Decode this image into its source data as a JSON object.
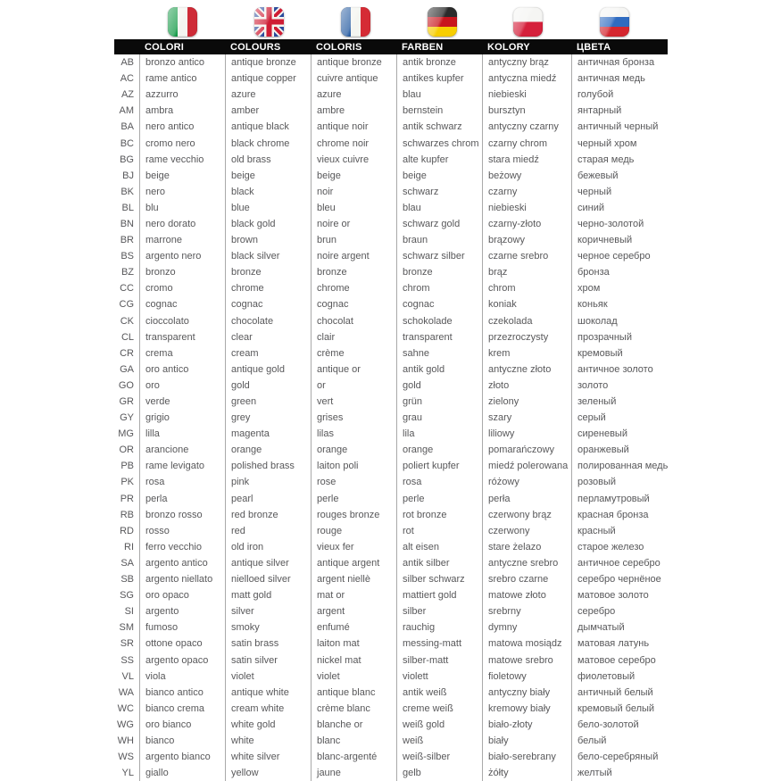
{
  "table": {
    "columns": [
      "COLORI",
      "COLOURS",
      "COLORIS",
      "FARBEN",
      "KOLORY",
      "ЦВЕТА"
    ],
    "flags": [
      {
        "name": "italy-flag",
        "colors": [
          "#169b48",
          "#f4f5f0",
          "#ce2b37"
        ]
      },
      {
        "name": "uk-flag",
        "colors": [
          "#012169",
          "#ffffff",
          "#c8102e"
        ]
      },
      {
        "name": "france-flag",
        "colors": [
          "#2b5fa3",
          "#f4f5f0",
          "#d52b35"
        ]
      },
      {
        "name": "germany-flag",
        "colors": [
          "#2b2b2b",
          "#c8151d",
          "#f7ce00"
        ]
      },
      {
        "name": "poland-flag",
        "colors": [
          "#f5f5f3",
          "#d5203b"
        ]
      },
      {
        "name": "russia-flag",
        "colors": [
          "#f5f5f3",
          "#2f6bc0",
          "#d5272f"
        ]
      }
    ],
    "rows": [
      {
        "code": "AB",
        "it": "bronzo antico",
        "en": "antique bronze",
        "fr": "antique bronze",
        "de": "antik bronze",
        "pl": "antyczny brąz",
        "ru": "античная бронза"
      },
      {
        "code": "AC",
        "it": "rame antico",
        "en": "antique copper",
        "fr": "cuivre antique",
        "de": "antikes kupfer",
        "pl": "antyczna miedź",
        "ru": "античная медь"
      },
      {
        "code": "AZ",
        "it": "azzurro",
        "en": "azure",
        "fr": "azure",
        "de": "blau",
        "pl": "niebieski",
        "ru": "голубой"
      },
      {
        "code": "AM",
        "it": "ambra",
        "en": "amber",
        "fr": "ambre",
        "de": "bernstein",
        "pl": "bursztyn",
        "ru": "янтарный"
      },
      {
        "code": "BA",
        "it": "nero antico",
        "en": "antique black",
        "fr": "antique noir",
        "de": "antik schwarz",
        "pl": "antyczny czarny",
        "ru": "античный черный"
      },
      {
        "code": "BC",
        "it": "cromo nero",
        "en": "black chrome",
        "fr": "chrome noir",
        "de": "schwarzes chrom",
        "pl": "czarny chrom",
        "ru": "черный хром"
      },
      {
        "code": "BG",
        "it": "rame vecchio",
        "en": "old brass",
        "fr": "vieux cuivre",
        "de": "alte kupfer",
        "pl": "stara miedź",
        "ru": "старая медь"
      },
      {
        "code": "BJ",
        "it": "beige",
        "en": "beige",
        "fr": "beige",
        "de": "beige",
        "pl": "beżowy",
        "ru": "бежевый"
      },
      {
        "code": "BK",
        "it": "nero",
        "en": "black",
        "fr": "noir",
        "de": "schwarz",
        "pl": "czarny",
        "ru": "черный"
      },
      {
        "code": "BL",
        "it": "blu",
        "en": "blue",
        "fr": "bleu",
        "de": "blau",
        "pl": "niebieski",
        "ru": "синий"
      },
      {
        "code": "BN",
        "it": "nero dorato",
        "en": "black gold",
        "fr": "noire or",
        "de": "schwarz gold",
        "pl": "czarny-złoto",
        "ru": "черно-золотой"
      },
      {
        "code": "BR",
        "it": "marrone",
        "en": "brown",
        "fr": "brun",
        "de": "braun",
        "pl": "brązowy",
        "ru": "коричневый"
      },
      {
        "code": "BS",
        "it": "argento nero",
        "en": "black silver",
        "fr": "noire argent",
        "de": "schwarz silber",
        "pl": "czarne srebro",
        "ru": "черное серебро"
      },
      {
        "code": "BZ",
        "it": "bronzo",
        "en": "bronze",
        "fr": "bronze",
        "de": "bronze",
        "pl": "brąz",
        "ru": "бронза"
      },
      {
        "code": "CC",
        "it": "cromo",
        "en": "chrome",
        "fr": "chrome",
        "de": "chrom",
        "pl": "chrom",
        "ru": "хром"
      },
      {
        "code": "CG",
        "it": "cognac",
        "en": "cognac",
        "fr": "cognac",
        "de": "cognac",
        "pl": "koniak",
        "ru": "коньяк"
      },
      {
        "code": "CK",
        "it": "cioccolato",
        "en": "chocolate",
        "fr": "chocolat",
        "de": "schokolade",
        "pl": "czekolada",
        "ru": "шоколад"
      },
      {
        "code": "CL",
        "it": "transparent",
        "en": "clear",
        "fr": "clair",
        "de": "transparent",
        "pl": "przezroczysty",
        "ru": "прозрачный"
      },
      {
        "code": "CR",
        "it": "crema",
        "en": "cream",
        "fr": "crème",
        "de": "sahne",
        "pl": "krem",
        "ru": "кремовый"
      },
      {
        "code": "GA",
        "it": "oro antico",
        "en": "antique gold",
        "fr": "antique or",
        "de": "antik gold",
        "pl": "antyczne złoto",
        "ru": "античное золото"
      },
      {
        "code": "GO",
        "it": "oro",
        "en": "gold",
        "fr": "or",
        "de": "gold",
        "pl": "złoto",
        "ru": "золото"
      },
      {
        "code": "GR",
        "it": "verde",
        "en": "green",
        "fr": "vert",
        "de": "grün",
        "pl": "zielony",
        "ru": "зеленый"
      },
      {
        "code": "GY",
        "it": "grigio",
        "en": "grey",
        "fr": "grises",
        "de": "grau",
        "pl": "szary",
        "ru": "серый"
      },
      {
        "code": "MG",
        "it": "lilla",
        "en": "magenta",
        "fr": "lilas",
        "de": "lila",
        "pl": "liliowy",
        "ru": "сиреневый"
      },
      {
        "code": "OR",
        "it": "arancione",
        "en": "orange",
        "fr": "orange",
        "de": "orange",
        "pl": "pomarańczowy",
        "ru": "оранжевый"
      },
      {
        "code": "PB",
        "it": "rame levigato",
        "en": "polished brass",
        "fr": "laiton poli",
        "de": "poliert kupfer",
        "pl": "miedź polerowana",
        "ru": "полированная медь"
      },
      {
        "code": "PK",
        "it": "rosa",
        "en": "pink",
        "fr": "rose",
        "de": "rosa",
        "pl": "różowy",
        "ru": "розовый"
      },
      {
        "code": "PR",
        "it": "perla",
        "en": "pearl",
        "fr": "perle",
        "de": "perle",
        "pl": "perła",
        "ru": "перламутровый"
      },
      {
        "code": "RB",
        "it": "bronzo rosso",
        "en": "red bronze",
        "fr": "rouges bronze",
        "de": "rot bronze",
        "pl": "czerwony brąz",
        "ru": "красная бронза"
      },
      {
        "code": "RD",
        "it": "rosso",
        "en": "red",
        "fr": "rouge",
        "de": "rot",
        "pl": "czerwony",
        "ru": "красный"
      },
      {
        "code": "RI",
        "it": "ferro vecchio",
        "en": "old iron",
        "fr": "vieux fer",
        "de": "alt eisen",
        "pl": "stare żelazo",
        "ru": "старое железо"
      },
      {
        "code": "SA",
        "it": "argento antico",
        "en": "antique silver",
        "fr": "antique argent",
        "de": "antik silber",
        "pl": "antyczne srebro",
        "ru": "античное серебро"
      },
      {
        "code": "SB",
        "it": "argento niellato",
        "en": "nielloed silver",
        "fr": "argent niellè",
        "de": "silber schwarz",
        "pl": "srebro czarne",
        "ru": "серебро чернёное"
      },
      {
        "code": "SG",
        "it": "oro opaco",
        "en": "matt gold",
        "fr": "mat or",
        "de": "mattiert gold",
        "pl": "matowe złoto",
        "ru": "матовое золото"
      },
      {
        "code": "SI",
        "it": "argento",
        "en": "silver",
        "fr": "argent",
        "de": "silber",
        "pl": "srebrny",
        "ru": "серебро"
      },
      {
        "code": "SM",
        "it": "fumoso",
        "en": "smoky",
        "fr": "enfumé",
        "de": "rauchig",
        "pl": "dymny",
        "ru": "дымчатый"
      },
      {
        "code": "SR",
        "it": "ottone opaco",
        "en": "satin brass",
        "fr": "laiton mat",
        "de": "messing-matt",
        "pl": "matowa mosiądz",
        "ru": "матовая латунь"
      },
      {
        "code": "SS",
        "it": "argento opaco",
        "en": "satin silver",
        "fr": "nickel mat",
        "de": "silber-matt",
        "pl": "matowe srebro",
        "ru": "матовое серебро"
      },
      {
        "code": "VL",
        "it": "viola",
        "en": "violet",
        "fr": "violet",
        "de": "violett",
        "pl": "fioletowy",
        "ru": "фиолетовый"
      },
      {
        "code": "WA",
        "it": "bianco antico",
        "en": "antique white",
        "fr": "antique blanc",
        "de": "antik weiß",
        "pl": "antyczny biały",
        "ru": "античный белый"
      },
      {
        "code": "WC",
        "it": "bianco crema",
        "en": "cream white",
        "fr": "crème blanc",
        "de": "creme weiß",
        "pl": "kremowy biały",
        "ru": "кремовый белый"
      },
      {
        "code": "WG",
        "it": "oro bianco",
        "en": "white gold",
        "fr": "blanche or",
        "de": "weiß gold",
        "pl": "biało-złoty",
        "ru": "бело-золотой"
      },
      {
        "code": "WH",
        "it": "bianco",
        "en": "white",
        "fr": "blanc",
        "de": "weiß",
        "pl": "biały",
        "ru": "белый"
      },
      {
        "code": "WS",
        "it": "argento bianco",
        "en": "white silver",
        "fr": "blanc-argenté",
        "de": "weiß-silber",
        "pl": "biało-serebrany",
        "ru": "бело-серебряный"
      },
      {
        "code": "YL",
        "it": "giallo",
        "en": "yellow",
        "fr": "jaune",
        "de": "gelb",
        "pl": "żółty",
        "ru": "желтый"
      }
    ]
  },
  "colors": {
    "header_bg": "#0a0a0a",
    "header_text": "#ffffff",
    "body_text": "#58585a",
    "divider": "#a9a9a9",
    "background": "#ffffff"
  }
}
